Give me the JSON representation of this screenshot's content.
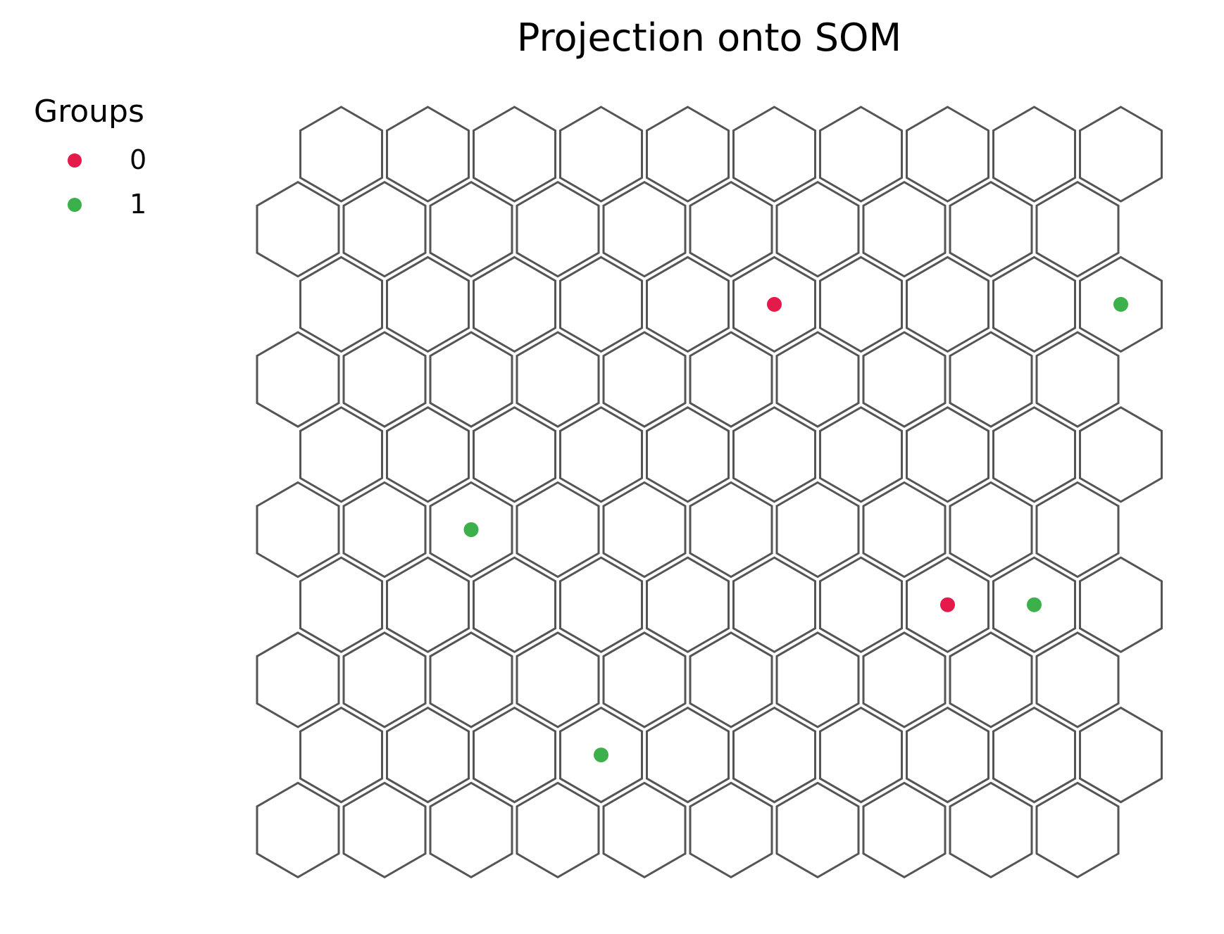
{
  "chart_data": {
    "type": "scatter",
    "title": "Projection onto SOM",
    "grid": {
      "rows": 10,
      "cols": 10,
      "topology": "hexagonal"
    },
    "legend": {
      "title": "Groups",
      "placement": "upper-left",
      "entries": [
        {
          "label": "0",
          "color": "#e31a4a"
        },
        {
          "label": "1",
          "color": "#3bb04b"
        }
      ]
    },
    "series": [
      {
        "name": "0",
        "color": "#e31a4a",
        "points": [
          {
            "row": 2,
            "col": 5
          },
          {
            "row": 6,
            "col": 7
          }
        ]
      },
      {
        "name": "1",
        "color": "#3bb04b",
        "points": [
          {
            "row": 2,
            "col": 9
          },
          {
            "row": 5,
            "col": 2
          },
          {
            "row": 6,
            "col": 8
          },
          {
            "row": 8,
            "col": 3
          }
        ]
      }
    ],
    "colors": {
      "hex_stroke": "#555555"
    }
  }
}
